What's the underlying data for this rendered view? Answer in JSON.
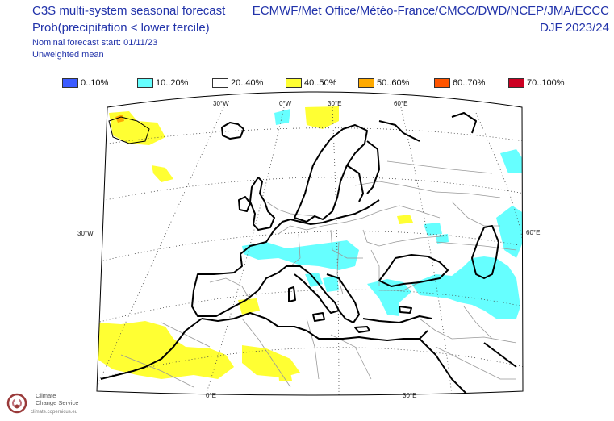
{
  "header": {
    "title_line1": "C3S multi-system seasonal forecast",
    "title_line2": "Prob(precipitation < lower tercile)",
    "nominal_start": "Nominal forecast start: 01/11/23",
    "weighting": "Unweighted mean",
    "centres": "ECMWF/Met Office/Météo-France/CMCC/DWD/NCEP/JMA/ECCC",
    "season": "DJF 2023/24"
  },
  "legend": [
    {
      "label": "0..10%",
      "color": "#3b5bff"
    },
    {
      "label": "10..20%",
      "color": "#66ffff"
    },
    {
      "label": "20..40%",
      "color": "#ffffff"
    },
    {
      "label": "40..50%",
      "color": "#ffff33"
    },
    {
      "label": "50..60%",
      "color": "#ffaa00"
    },
    {
      "label": "60..70%",
      "color": "#ff5500"
    },
    {
      "label": "70..100%",
      "color": "#cc0022"
    }
  ],
  "map": {
    "lon_labels_top": [
      "30°W",
      "0°W",
      "30°E",
      "60°E"
    ],
    "lon_labels_bottom": [
      "0°E",
      "30°E"
    ],
    "lat_label_left": "30°W",
    "lat_label_right": "60°E"
  },
  "logo": {
    "name_line1": "Climate",
    "name_line2": "Change Service",
    "url": "climate.copernicus.eu"
  }
}
